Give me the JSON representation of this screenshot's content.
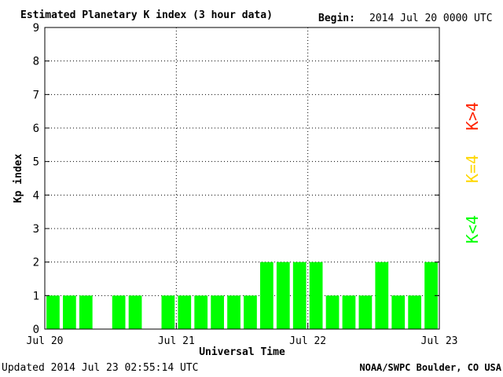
{
  "chart_data": {
    "type": "bar",
    "title": "Estimated Planetary K index (3 hour data)",
    "begin_label": "Begin:",
    "begin_value": "2014 Jul 20 0000 UTC",
    "xlabel": "Universal Time",
    "ylabel": "Kp index",
    "ylim": [
      0,
      9
    ],
    "yticks": [
      "0",
      "1",
      "2",
      "3",
      "4",
      "5",
      "6",
      "7",
      "8",
      "9"
    ],
    "xticks": [
      "Jul 20",
      "Jul 21",
      "Jul 22",
      "Jul 23"
    ],
    "grid": true,
    "bar_width_fraction": 0.8,
    "values": [
      1,
      1,
      1,
      0,
      1,
      1,
      0,
      1,
      1,
      1,
      1,
      1,
      1,
      2,
      2,
      2,
      2,
      1,
      1,
      1,
      2,
      1,
      1,
      2
    ],
    "colors": {
      "low": "#00ff00",
      "mid": "#ffd700",
      "high": "#ff2200"
    },
    "legend": [
      {
        "label": "K<4",
        "color": "#00ff00"
      },
      {
        "label": "K=4",
        "color": "#ffd700"
      },
      {
        "label": "K>4",
        "color": "#ff2200"
      }
    ]
  },
  "footer": {
    "updated": "Updated 2014 Jul 23 02:55:14 UTC",
    "source": "NOAA/SWPC Boulder, CO USA"
  }
}
